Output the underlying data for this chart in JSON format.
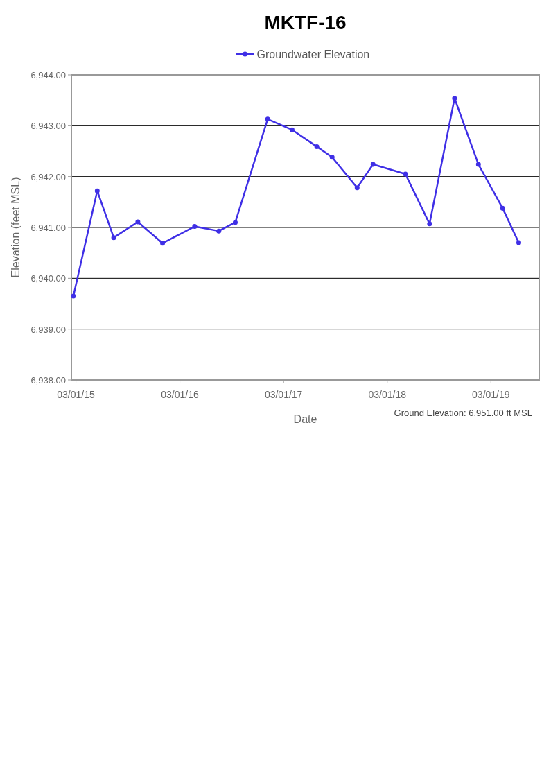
{
  "chart_data": {
    "type": "line",
    "title": "MKTF-16",
    "xlabel": "Date",
    "ylabel": "Elevation (feet MSL)",
    "annotations": [
      "Ground Elevation: 6,951.00 ft MSL"
    ],
    "x": [
      "2015-02-20",
      "2015-05-15",
      "2015-07-12",
      "2015-10-05",
      "2015-12-31",
      "2016-04-22",
      "2016-07-16",
      "2016-09-12",
      "2017-01-04",
      "2017-03-31",
      "2017-06-26",
      "2017-08-19",
      "2017-11-15",
      "2018-01-10",
      "2018-05-04",
      "2018-07-28",
      "2018-10-24",
      "2019-01-16",
      "2019-04-11",
      "2019-06-07"
    ],
    "series": [
      {
        "name": "Groundwater Elevation",
        "color": "#3f2fe6",
        "values": [
          6939.65,
          6941.72,
          6940.8,
          6941.11,
          6940.69,
          6941.02,
          6940.93,
          6941.1,
          6943.13,
          6942.92,
          6942.59,
          6942.38,
          6941.78,
          6942.24,
          6942.05,
          6941.07,
          6943.54,
          6942.24,
          6941.38,
          6940.7
        ]
      }
    ],
    "xlim": [
      "2015-02-13",
      "2019-08-18"
    ],
    "xticks": [
      {
        "value": "2015-03-01",
        "label": "03/01/15"
      },
      {
        "value": "2016-03-01",
        "label": "03/01/16"
      },
      {
        "value": "2017-03-01",
        "label": "03/01/17"
      },
      {
        "value": "2018-03-01",
        "label": "03/01/18"
      },
      {
        "value": "2019-03-01",
        "label": "03/01/19"
      }
    ],
    "ylim": [
      6938,
      6944
    ],
    "yticks": [
      {
        "value": 6938,
        "label": "6,938.00"
      },
      {
        "value": 6939,
        "label": "6,939.00"
      },
      {
        "value": 6940,
        "label": "6,940.00"
      },
      {
        "value": 6941,
        "label": "6,941.00"
      },
      {
        "value": 6942,
        "label": "6,942.00"
      },
      {
        "value": 6943,
        "label": "6,943.00"
      },
      {
        "value": 6944,
        "label": "6,944.00"
      }
    ],
    "grid": "y",
    "legend": "top",
    "marker": "circle",
    "line_style": "solid"
  }
}
